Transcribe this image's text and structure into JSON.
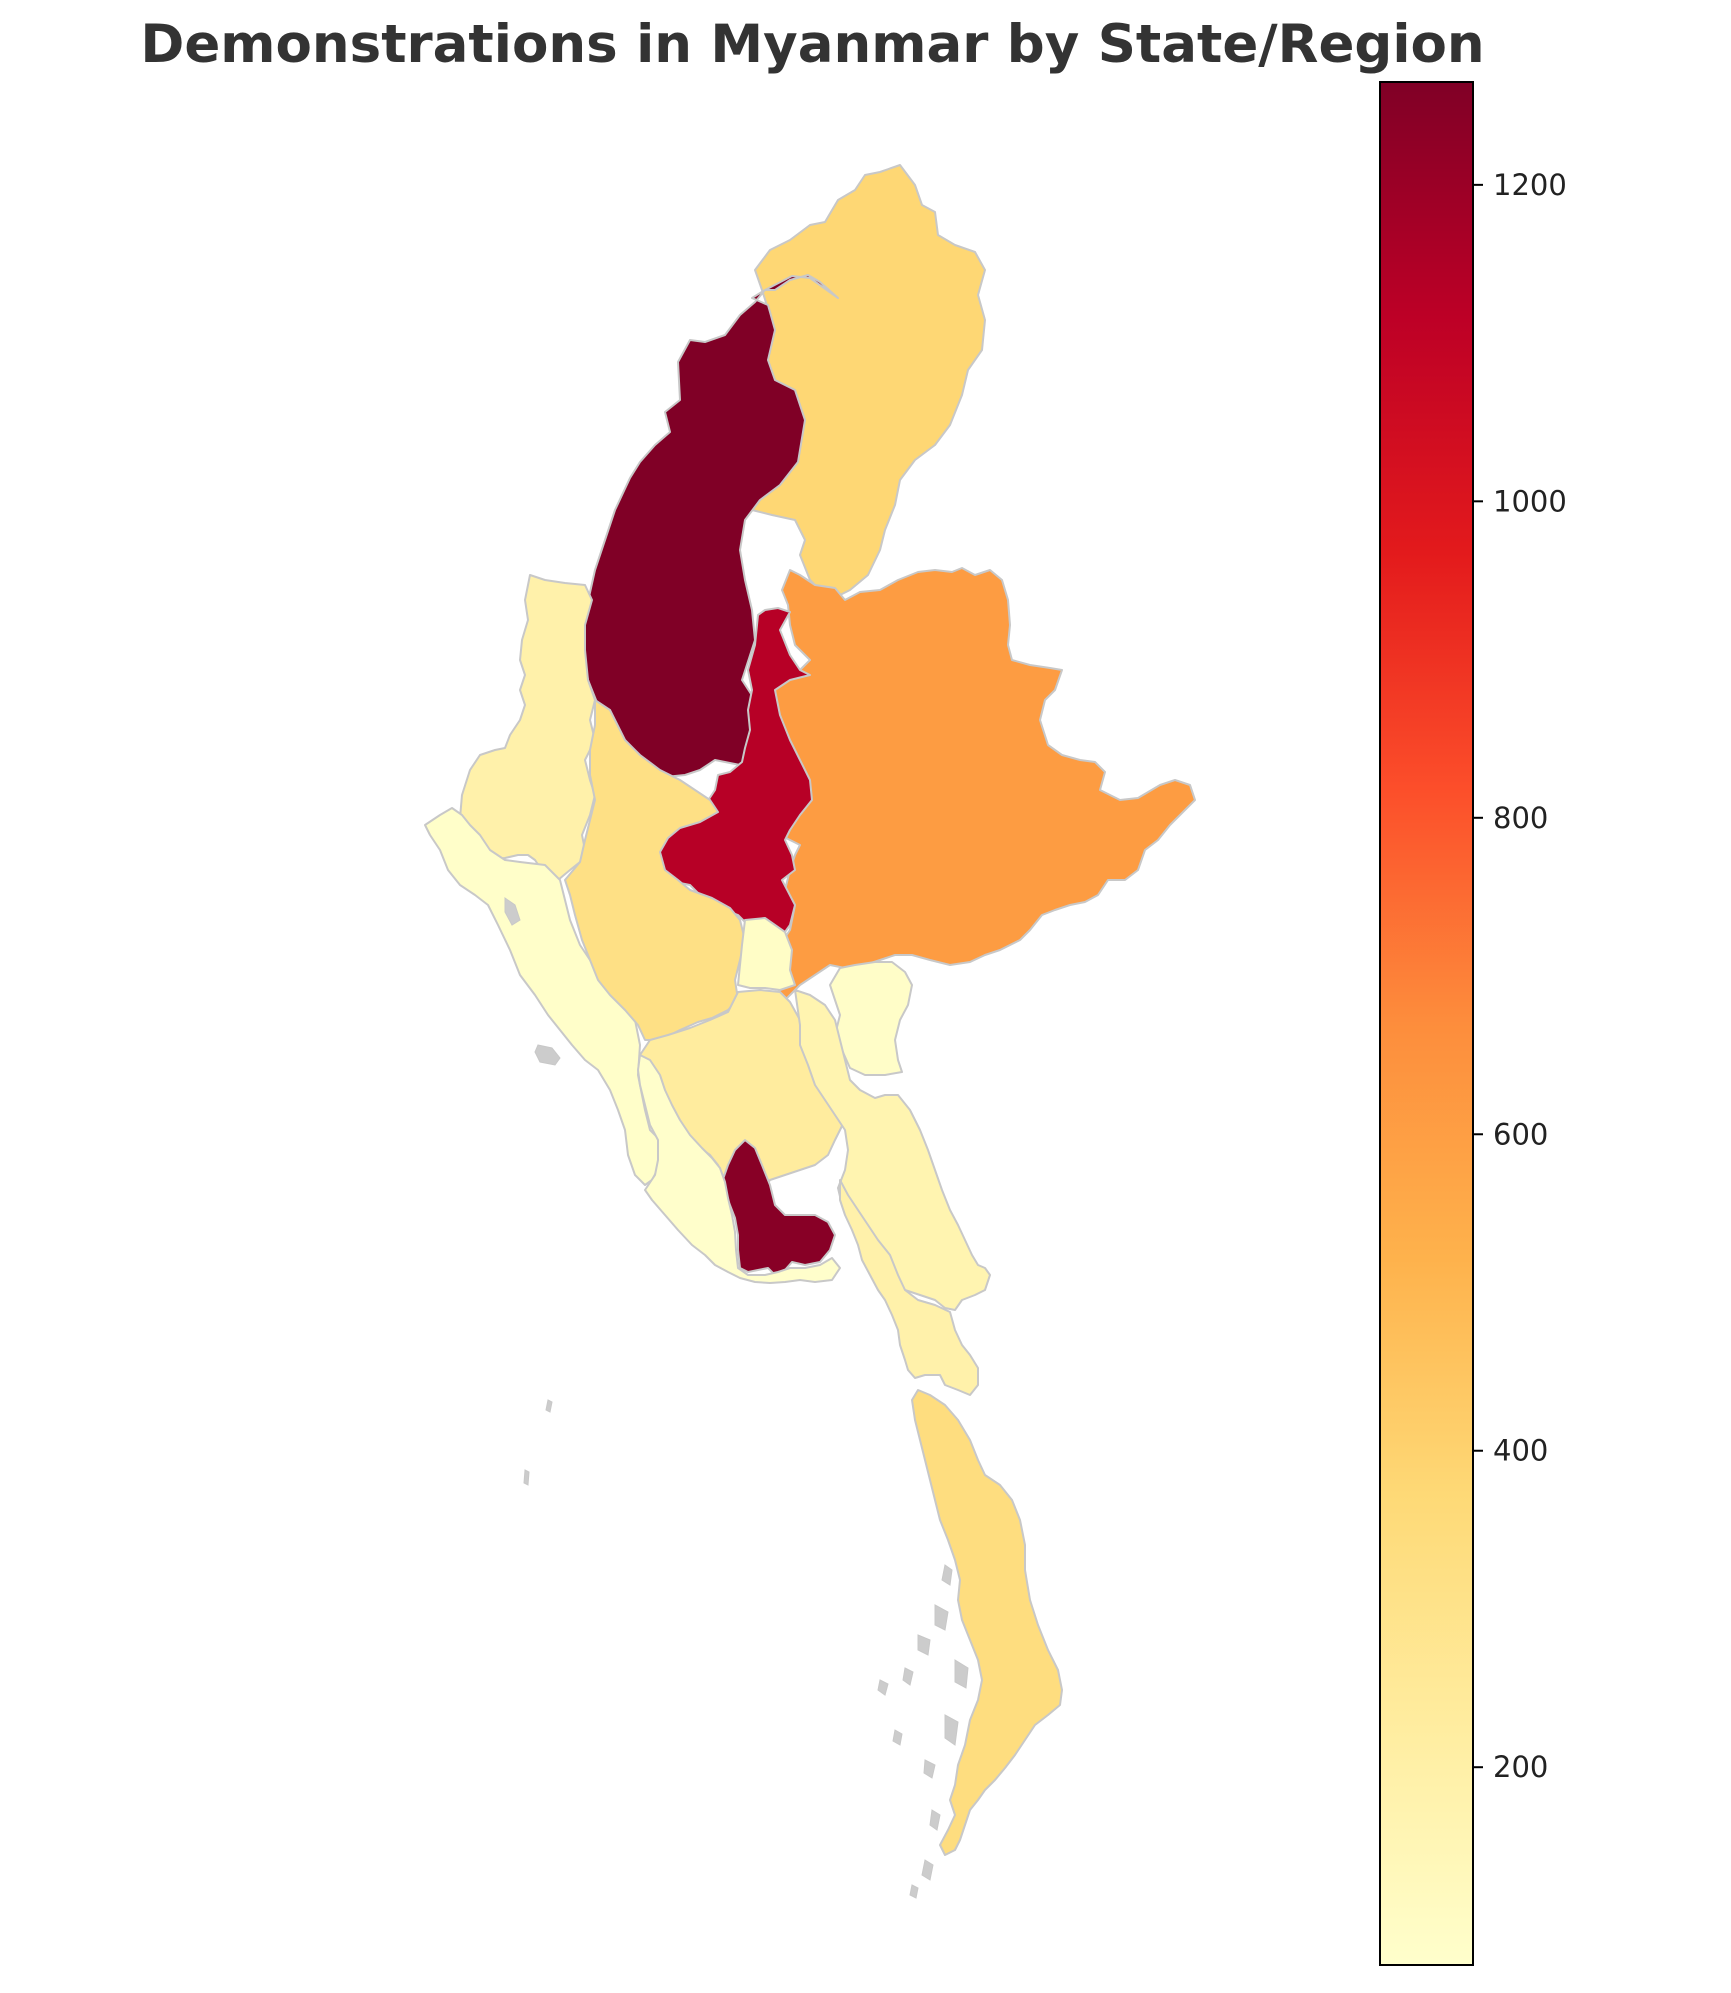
{
  "title": "Demonstrations in Myanmar by State/Region",
  "chart_data": {
    "type": "choropleth",
    "title": "Demonstrations in Myanmar by State/Region",
    "colormap": "YlOrRd",
    "colorbar": {
      "range": [
        75,
        1265
      ],
      "ticks": [
        200,
        400,
        600,
        800,
        1000,
        1200
      ],
      "tick_labels": [
        "200",
        "400",
        "600",
        "800",
        "1000",
        "1200"
      ],
      "colors": [
        "#ffffcc",
        "#ffeda0",
        "#fed976",
        "#feb24c",
        "#fd8d3c",
        "#fc4e2a",
        "#e31a1c",
        "#bd0026",
        "#800026"
      ]
    },
    "regions": [
      {
        "id": "kachin",
        "value": 380
      },
      {
        "id": "sagaing",
        "value": 1265
      },
      {
        "id": "shan",
        "value": 610
      },
      {
        "id": "mandalay",
        "value": 1130
      },
      {
        "id": "chin",
        "value": 190
      },
      {
        "id": "rakhine",
        "value": 85
      },
      {
        "id": "magway",
        "value": 320
      },
      {
        "id": "naypyidaw",
        "value": 95
      },
      {
        "id": "kayah",
        "value": 90
      },
      {
        "id": "bago",
        "value": 230
      },
      {
        "id": "yangon",
        "value": 1245
      },
      {
        "id": "kayin",
        "value": 170
      },
      {
        "id": "mon",
        "value": 190
      },
      {
        "id": "tanintharyi",
        "value": 340
      },
      {
        "id": "ayeyarwady",
        "value": 80
      }
    ]
  }
}
